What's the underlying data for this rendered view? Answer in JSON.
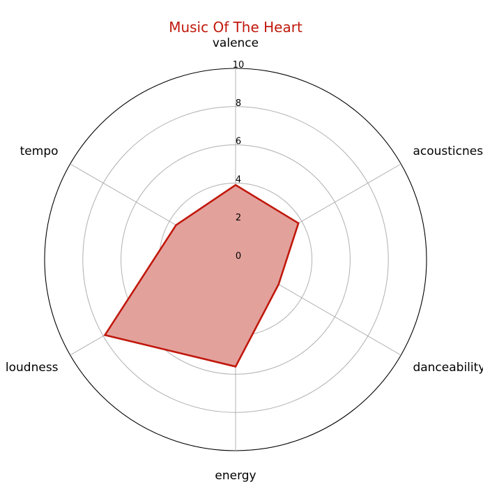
{
  "chart_data": {
    "type": "radar",
    "title": "Music Of The Heart",
    "title_color": "#c0180c",
    "axes": [
      "valence",
      "acousticness",
      "danceability",
      "energy",
      "loudness",
      "tempo"
    ],
    "series": [
      {
        "values": [
          3.9,
          3.8,
          2.6,
          5.6,
          7.9,
          3.6
        ],
        "line_color": "#c0180c",
        "fill_color": "#e3a19c"
      }
    ],
    "r_range": [
      0,
      10
    ],
    "r_ticks": [
      "0",
      "2",
      "4",
      "6",
      "8",
      "10"
    ],
    "grid": true
  }
}
